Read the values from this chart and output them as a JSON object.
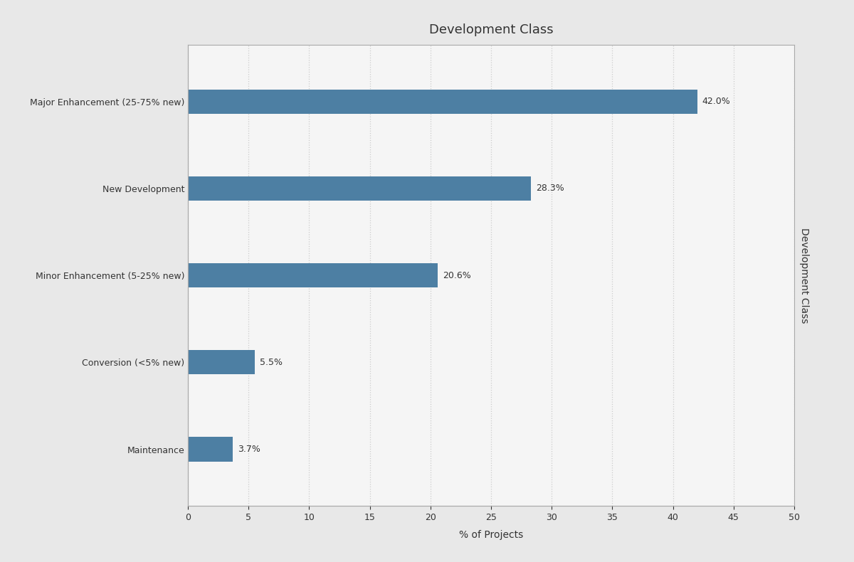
{
  "title": "Development Class",
  "xlabel": "% of Projects",
  "ylabel": "Development Class",
  "categories": [
    "Maintenance",
    "Conversion (<5% new)",
    "Minor Enhancement (5-25% new)",
    "New Development",
    "Major Enhancement (25-75% new)"
  ],
  "values": [
    3.7,
    5.5,
    20.6,
    28.3,
    42.0
  ],
  "labels": [
    "3.7%",
    "5.5%",
    "20.6%",
    "28.3%",
    "42.0%"
  ],
  "bar_color": "#4d7fa3",
  "figure_background_color": "#e8e8e8",
  "plot_background_color": "#f5f5f5",
  "xlim": [
    0,
    50
  ],
  "xticks": [
    0,
    5,
    10,
    15,
    20,
    25,
    30,
    35,
    40,
    45,
    50
  ],
  "title_fontsize": 13,
  "label_fontsize": 10,
  "tick_fontsize": 9,
  "bar_height": 0.28,
  "grid_color": "#cccccc",
  "text_color": "#333333",
  "spine_color": "#aaaaaa"
}
